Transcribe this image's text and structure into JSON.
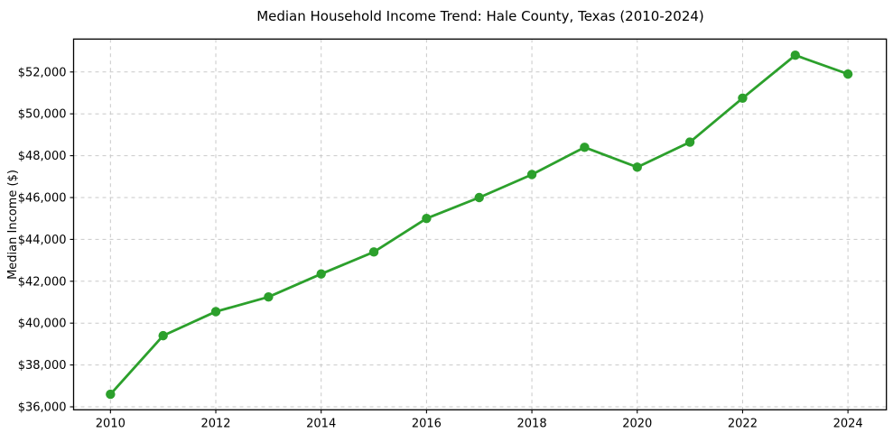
{
  "chart_data": {
    "type": "line",
    "title": "Median Household Income Trend: Hale County, Texas (2010-2024)",
    "xlabel": "",
    "ylabel": "Median Income ($)",
    "x": [
      2010,
      2011,
      2012,
      2013,
      2014,
      2015,
      2016,
      2017,
      2018,
      2019,
      2020,
      2021,
      2022,
      2023,
      2024
    ],
    "series": [
      {
        "name": "Median Household Income",
        "values": [
          36600,
          39400,
          40550,
          41250,
          42350,
          43400,
          45000,
          46000,
          47100,
          48400,
          47450,
          48650,
          50750,
          52800,
          51900
        ]
      }
    ],
    "xticks": [
      2010,
      2012,
      2014,
      2016,
      2018,
      2020,
      2022,
      2024
    ],
    "yticks": [
      36000,
      38000,
      40000,
      42000,
      44000,
      46000,
      48000,
      50000,
      52000
    ],
    "ytick_prefix": "$",
    "xlim": [
      2009.3,
      2024.73
    ],
    "ylim": [
      35858,
      53573
    ],
    "grid": true,
    "grid_style": "dashed",
    "legend": "none",
    "marker": "circle",
    "colors": {
      "line": "#2ca02c",
      "marker": "#2ca02c",
      "grid": "#c9c9c9",
      "spine": "#000000",
      "text": "#000000",
      "background": "#ffffff"
    }
  }
}
